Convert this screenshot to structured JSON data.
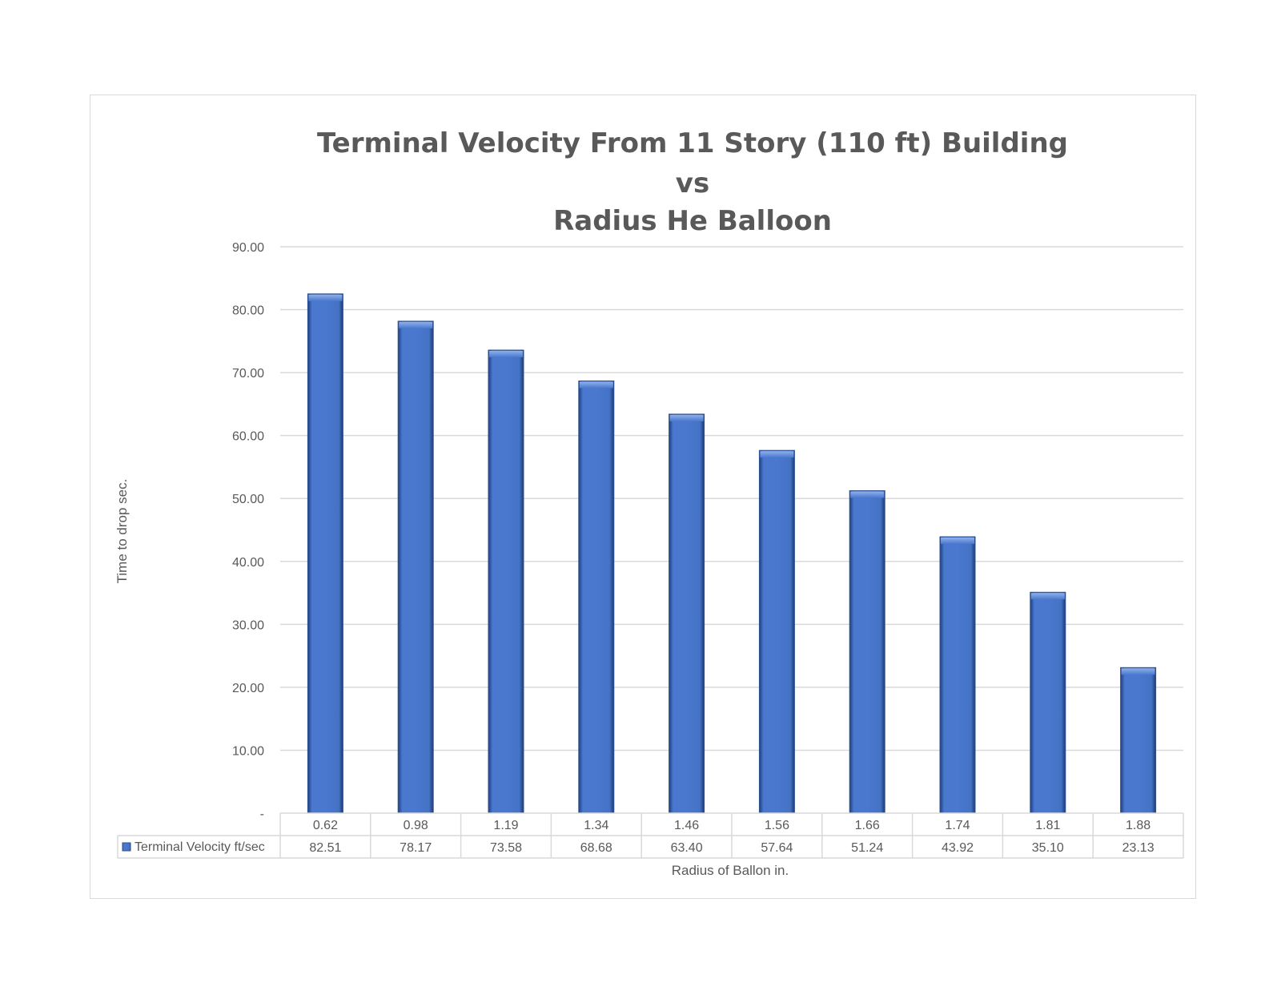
{
  "chart_data": {
    "type": "bar",
    "title_lines": [
      "Terminal Velocity From 11 Story (110 ft) Building",
      "vs",
      "Radius He Balloon"
    ],
    "xlabel": "Radius of Ballon in.",
    "ylabel": "Time to drop sec.",
    "ylim": [
      0,
      90
    ],
    "yticks": [
      0,
      10,
      20,
      30,
      40,
      50,
      60,
      70,
      80,
      90
    ],
    "ytick_labels": [
      "-",
      "10.00",
      "20.00",
      "30.00",
      "40.00",
      "50.00",
      "60.00",
      "70.00",
      "80.00",
      "90.00"
    ],
    "grid": true,
    "categories": [
      "0.62",
      "0.98",
      "1.19",
      "1.34",
      "1.46",
      "1.56",
      "1.66",
      "1.74",
      "1.81",
      "1.88"
    ],
    "series": [
      {
        "name": "Terminal Velocity ft/sec",
        "values": [
          82.51,
          78.17,
          73.58,
          68.68,
          63.4,
          57.64,
          51.24,
          43.92,
          35.1,
          23.13
        ],
        "value_labels": [
          "82.51",
          "78.17",
          "73.58",
          "68.68",
          "63.40",
          "57.64",
          "51.24",
          "43.92",
          "35.10",
          "23.13"
        ],
        "color": "#4472c4"
      }
    ],
    "legend": "data-table"
  }
}
